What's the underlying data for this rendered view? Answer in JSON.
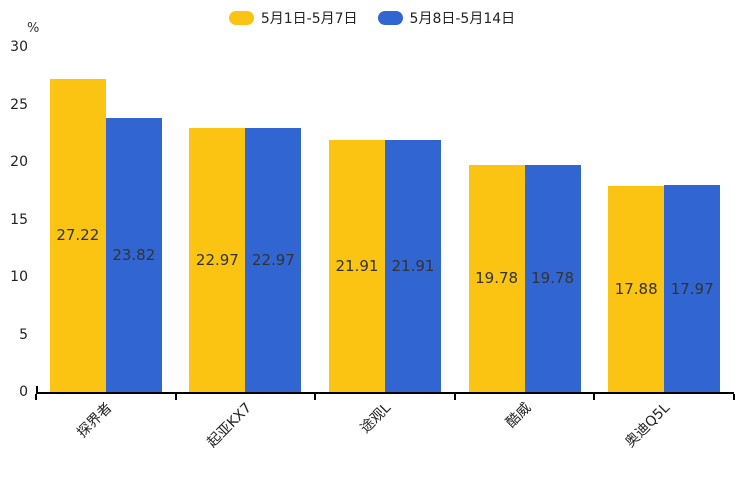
{
  "chart_data": {
    "type": "bar",
    "title": "",
    "unit_label": "%",
    "categories": [
      "探界者",
      "起亚KX7",
      "途观L",
      "酷威",
      "奥迪Q5L"
    ],
    "series": [
      {
        "name": "5月1日-5月7日",
        "color": "#FBC412",
        "values": [
          27.22,
          22.97,
          21.91,
          19.78,
          17.88
        ]
      },
      {
        "name": "5月8日-5月14日",
        "color": "#3166D2",
        "values": [
          23.82,
          22.97,
          21.91,
          19.78,
          17.97
        ]
      }
    ],
    "ylim": [
      0,
      30
    ],
    "yticks": [
      0,
      5,
      10,
      15,
      20,
      25,
      30
    ],
    "legend_position": "top-center",
    "grid": false,
    "axis_color": "#000000",
    "value_labels_shown": true
  }
}
